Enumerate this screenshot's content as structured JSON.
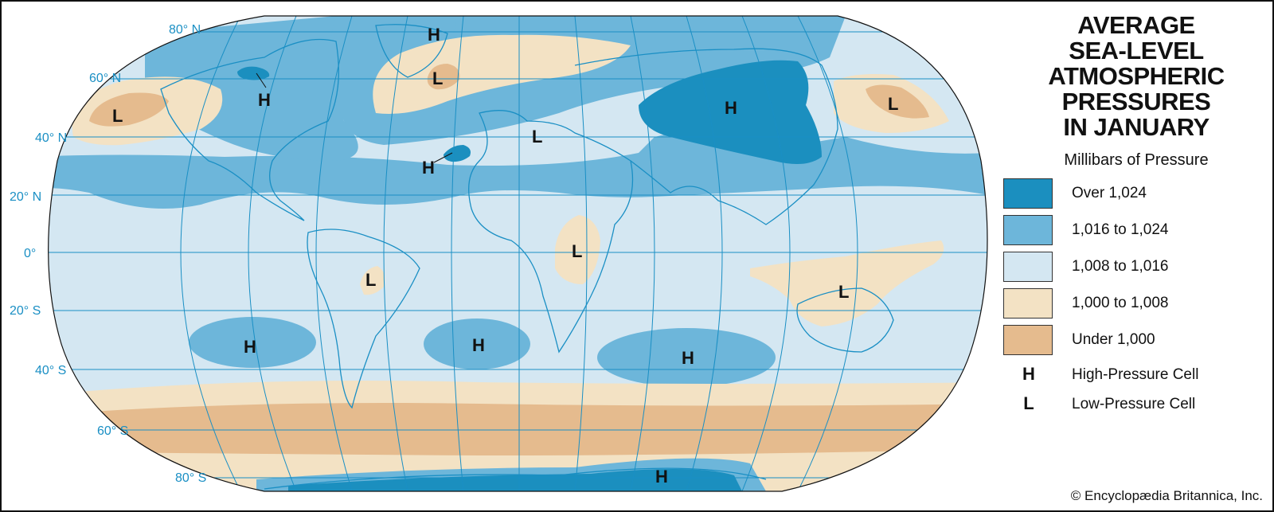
{
  "title_lines": [
    "AVERAGE",
    "SEA-LEVEL",
    "ATMOSPHERIC",
    "PRESSURES",
    "IN JANUARY"
  ],
  "subtitle": "Millibars of Pressure",
  "legend": [
    {
      "label": "Over 1,024",
      "color": "#1b8fbf"
    },
    {
      "label": "1,016 to 1,024",
      "color": "#6db6da"
    },
    {
      "label": "1,008 to 1,016",
      "color": "#d4e7f2"
    },
    {
      "label": "1,000 to 1,008",
      "color": "#f3e2c4"
    },
    {
      "label": "Under 1,000",
      "color": "#e5bb8e"
    }
  ],
  "symbols": [
    {
      "symbol": "H",
      "label": "High-Pressure Cell"
    },
    {
      "symbol": "L",
      "label": "Low-Pressure Cell"
    }
  ],
  "latitude_labels": [
    "80° N",
    "60° N",
    "40° N",
    "20° N",
    "0°",
    "20° S",
    "40° S",
    "60° S",
    "80° S"
  ],
  "pressure_cells": [
    "H",
    "L",
    "H",
    "L",
    "H",
    "L",
    "H",
    "L",
    "H",
    "L",
    "L",
    "L",
    "H",
    "H",
    "H",
    "H"
  ],
  "credit": "© Encyclopædia Britannica, Inc.",
  "colors": {
    "graticule": "#1a8fc4",
    "coastline": "#1a8fc4"
  }
}
